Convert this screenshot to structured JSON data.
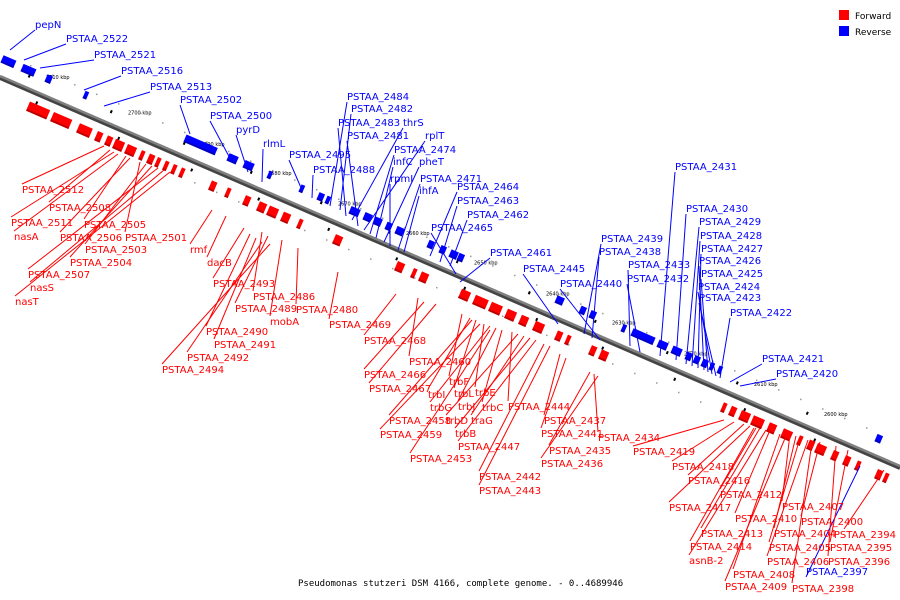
{
  "legend": {
    "items": [
      {
        "label": "Forward",
        "color": "#ff0000"
      },
      {
        "label": "Reverse",
        "color": "#0000ff"
      }
    ]
  },
  "caption": "Pseudomonas stutzeri DSM 4166, complete genome. - 0..4689946",
  "colors": {
    "forward": "#ff0000",
    "reverse": "#0000ff",
    "backbone": "#808080"
  },
  "ticks": [
    "2710 kbp",
    "2700 kbp",
    "2690 kbp",
    "2680 kbp",
    "2670 kbp",
    "2660 kbp",
    "2650 kbp",
    "2640 kbp",
    "2630 kbp",
    "2620 kbp",
    "2610 kbp",
    "2600 kbp"
  ],
  "reverse_labels": [
    "pepN",
    "PSTAA_2522",
    "PSTAA_2521",
    "PSTAA_2516",
    "PSTAA_2513",
    "PSTAA_2502",
    "PSTAA_2500",
    "pyrD",
    "rlmL",
    "PSTAA_2495",
    "PSTAA_2488",
    "PSTAA_2484",
    "PSTAA_2482",
    "PSTAA_2483",
    "thrS",
    "PSTAA_2481",
    "rplT",
    "PSTAA_2474",
    "infC",
    "pheT",
    "rpmI",
    "PSTAA_2471",
    "ihfA",
    "PSTAA_2464",
    "PSTAA_2463",
    "PSTAA_2462",
    "PSTAA_2465",
    "PSTAA_2461",
    "PSTAA_2445",
    "PSTAA_2439",
    "PSTAA_2438",
    "PSTAA_2440",
    "PSTAA_2433",
    "PSTAA_2432",
    "PSTAA_2431",
    "PSTAA_2430",
    "PSTAA_2429",
    "PSTAA_2428",
    "PSTAA_2427",
    "PSTAA_2426",
    "PSTAA_2425",
    "PSTAA_2424",
    "PSTAA_2423",
    "PSTAA_2422",
    "PSTAA_2421",
    "PSTAA_2420",
    "PSTAA_2397"
  ],
  "forward_labels": [
    "PSTAA_2512",
    "PSTAA_2508",
    "PSTAA_2511",
    "nasA",
    "PSTAA_2505",
    "PSTAA_2506",
    "PSTAA_2501",
    "PSTAA_2503",
    "PSTAA_2504",
    "PSTAA_2507",
    "nasS",
    "nasT",
    "rmf",
    "dacB",
    "PSTAA_2493",
    "PSTAA_2486",
    "PSTAA_2489",
    "mobA",
    "PSTAA_2480",
    "PSTAA_2490",
    "PSTAA_2491",
    "PSTAA_2492",
    "PSTAA_2494",
    "PSTAA_2469",
    "PSTAA_2468",
    "PSTAA_2460",
    "PSTAA_2466",
    "trbF",
    "PSTAA_2467",
    "trbI",
    "trbL",
    "trbE",
    "trbG",
    "trbJ",
    "trbC",
    "PSTAA_2444",
    "PSTAA_2458",
    "trbD",
    "traG",
    "PSTAA_2437",
    "PSTAA_2459",
    "trbB",
    "PSTAA_2441",
    "PSTAA_2434",
    "PSTAA_2447",
    "PSTAA_2435",
    "PSTAA_2453",
    "PSTAA_2436",
    "PSTAA_2442",
    "PSTAA_2443",
    "PSTAA_2419",
    "PSTAA_2418",
    "PSTAA_2416",
    "PSTAA_2412",
    "PSTAA_2417",
    "PSTAA_2407",
    "PSTAA_2410",
    "PSTAA_2400",
    "PSTAA_2404",
    "PSTAA_2394",
    "PSTAA_2413",
    "PSTAA_2405",
    "PSTAA_2395",
    "PSTAA_2414",
    "asnB-2",
    "PSTAA_2406",
    "PSTAA_2396",
    "PSTAA_2408",
    "PSTAA_2409",
    "PSTAA_2398"
  ]
}
